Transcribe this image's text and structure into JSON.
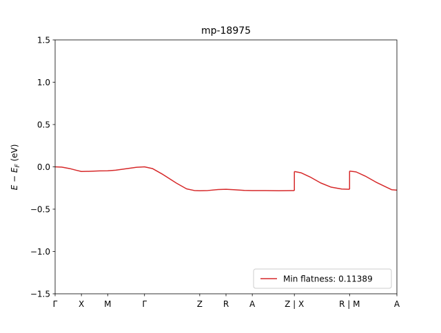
{
  "chart_data": {
    "type": "line",
    "title": "mp-18975",
    "ylabel": "E − E_F (eV)",
    "ylim": [
      -1.5,
      1.5
    ],
    "xlim": [
      0,
      13
    ],
    "yticks": [
      -1.5,
      -1.0,
      -0.5,
      0.0,
      0.5,
      1.0,
      1.5
    ],
    "ytick_labels": [
      "−1.5",
      "−1.0",
      "−0.5",
      "0.0",
      "0.5",
      "1.0",
      "1.5"
    ],
    "xticks": [
      {
        "x": 0,
        "label": "Γ"
      },
      {
        "x": 1,
        "label": "X"
      },
      {
        "x": 2,
        "label": "M"
      },
      {
        "x": 3.4,
        "label": "Γ"
      },
      {
        "x": 5.5,
        "label": "Z"
      },
      {
        "x": 6.5,
        "label": "R"
      },
      {
        "x": 7.5,
        "label": "A"
      },
      {
        "x": 9.1,
        "label": "Z | X"
      },
      {
        "x": 11.2,
        "label": "R | M"
      },
      {
        "x": 13,
        "label": "A"
      }
    ],
    "grid": false,
    "legend": {
      "placement": "lower-right",
      "entries": [
        "Min flatness: 0.11389"
      ]
    },
    "colors": {
      "series": "#d62728"
    },
    "series": [
      {
        "name": "Min flatness: 0.11389",
        "segments": [
          [
            [
              0,
              0.0
            ],
            [
              0.25,
              -0.003
            ],
            [
              0.55,
              -0.02
            ],
            [
              0.8,
              -0.04
            ],
            [
              1.0,
              -0.055
            ],
            [
              1.3,
              -0.053
            ],
            [
              1.7,
              -0.048
            ],
            [
              2.0,
              -0.047
            ],
            [
              2.3,
              -0.04
            ],
            [
              2.7,
              -0.022
            ],
            [
              3.1,
              -0.005
            ],
            [
              3.4,
              0.0
            ],
            [
              3.7,
              -0.02
            ],
            [
              4.1,
              -0.09
            ],
            [
              4.6,
              -0.19
            ],
            [
              5.0,
              -0.26
            ],
            [
              5.3,
              -0.28
            ],
            [
              5.5,
              -0.282
            ],
            [
              5.8,
              -0.28
            ],
            [
              6.2,
              -0.268
            ],
            [
              6.5,
              -0.265
            ],
            [
              6.8,
              -0.27
            ],
            [
              7.2,
              -0.278
            ],
            [
              7.5,
              -0.28
            ],
            [
              8.0,
              -0.28
            ],
            [
              8.5,
              -0.283
            ],
            [
              9.1,
              -0.28
            ]
          ],
          [
            [
              9.1,
              -0.055
            ],
            [
              9.35,
              -0.07
            ],
            [
              9.7,
              -0.12
            ],
            [
              10.1,
              -0.19
            ],
            [
              10.5,
              -0.24
            ],
            [
              10.9,
              -0.262
            ],
            [
              11.2,
              -0.265
            ]
          ],
          [
            [
              11.2,
              -0.05
            ],
            [
              11.45,
              -0.06
            ],
            [
              11.8,
              -0.11
            ],
            [
              12.2,
              -0.18
            ],
            [
              12.6,
              -0.24
            ],
            [
              12.8,
              -0.27
            ],
            [
              13.0,
              -0.275
            ]
          ]
        ]
      }
    ]
  }
}
